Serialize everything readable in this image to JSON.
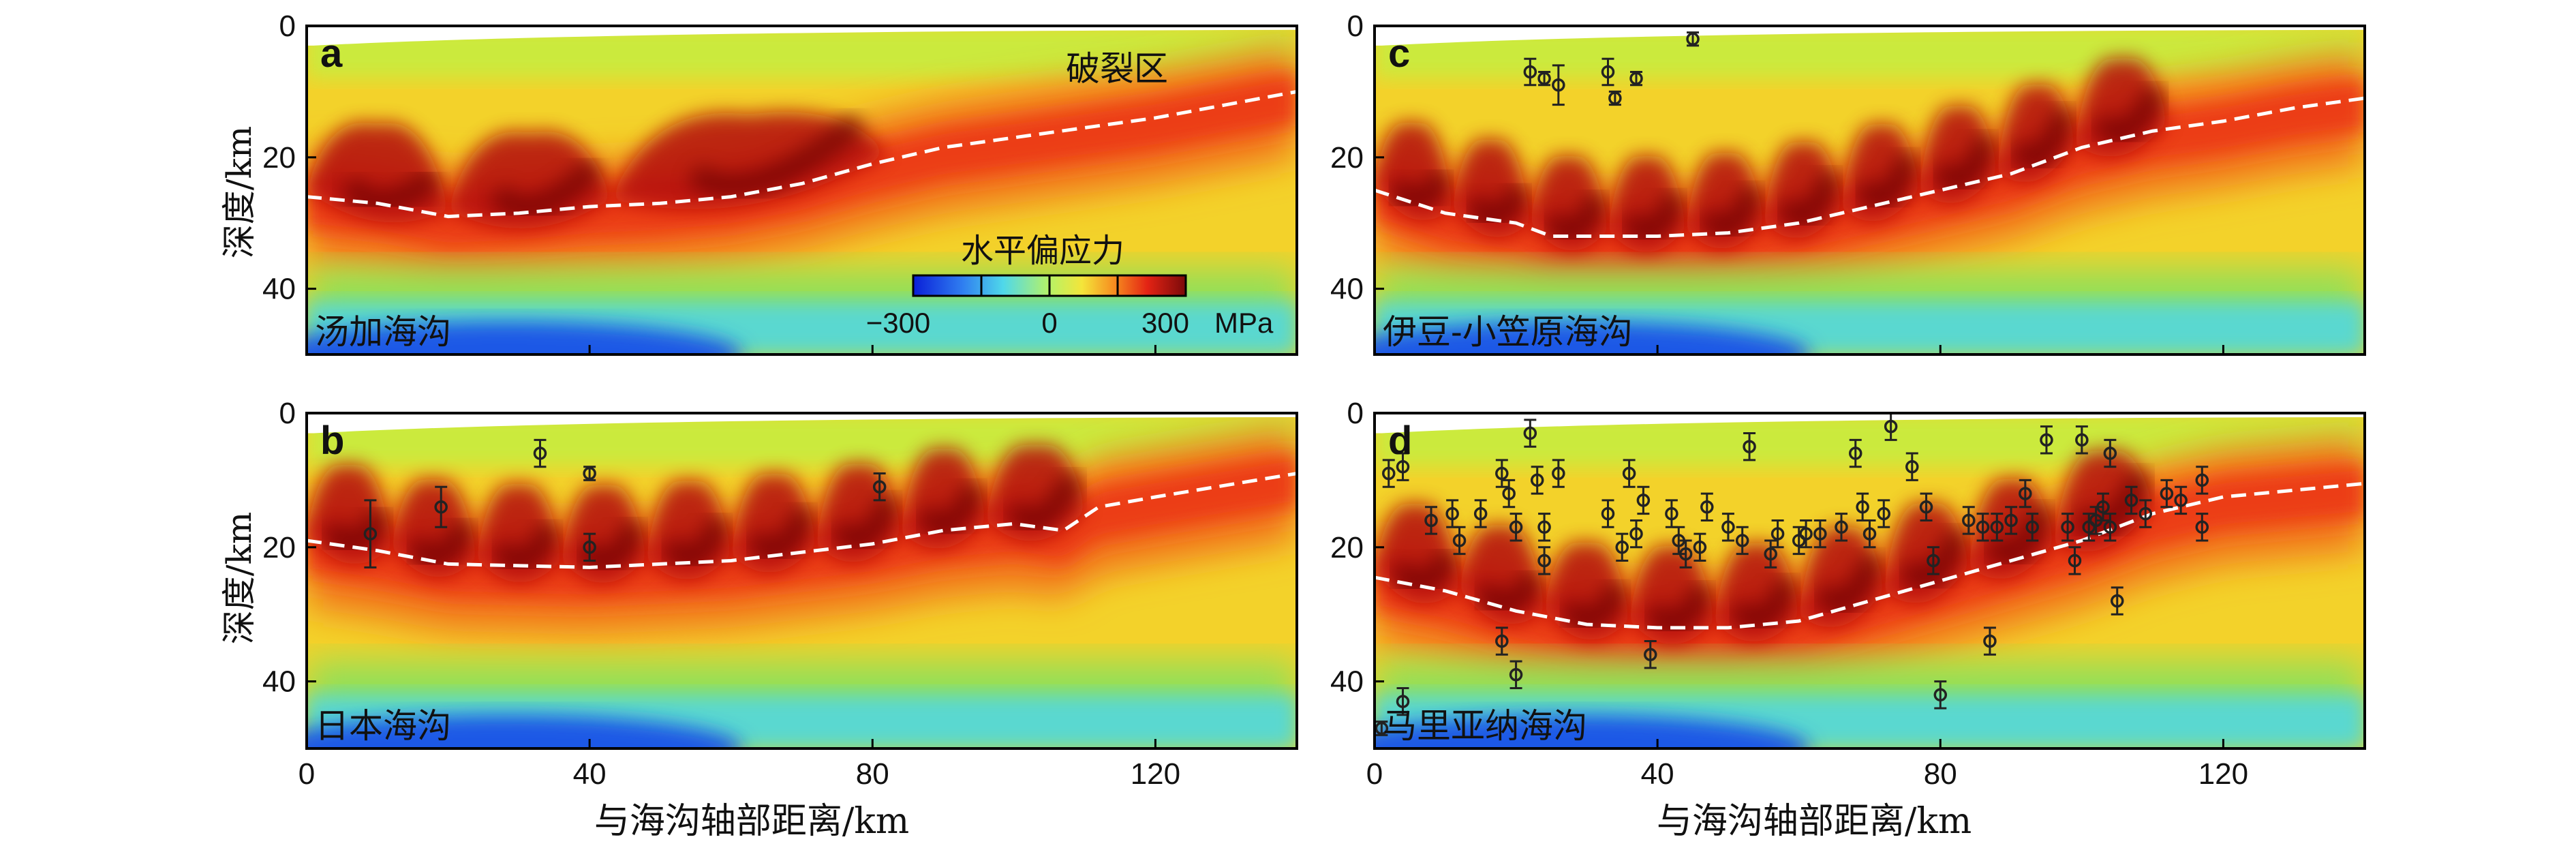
{
  "figure": {
    "xlabel": "与海沟轴部距离/km",
    "ylabel": "深度/km",
    "rupture_label": "破裂区",
    "colorbar": {
      "title": "水平偏应力",
      "ticks": [
        "−300",
        "0",
        "300"
      ],
      "unit": "MPa",
      "range": [
        -300,
        300
      ]
    }
  },
  "chart_data": [
    {
      "type": "heatmap",
      "panel": "a",
      "name": "汤加海沟",
      "xlim": [
        0,
        140
      ],
      "ylim": [
        0,
        50
      ],
      "xticks": [
        "0",
        "40",
        "80",
        "120"
      ],
      "yticks": [
        "0",
        "20",
        "40"
      ],
      "fault_line": [
        [
          0,
          26
        ],
        [
          10,
          27
        ],
        [
          20,
          29
        ],
        [
          30,
          28.5
        ],
        [
          40,
          27.5
        ],
        [
          50,
          27
        ],
        [
          60,
          26
        ],
        [
          70,
          24
        ],
        [
          80,
          21
        ],
        [
          90,
          18.5
        ],
        [
          100,
          17
        ],
        [
          110,
          15.5
        ],
        [
          120,
          14
        ],
        [
          130,
          12
        ],
        [
          140,
          10
        ]
      ],
      "arcs": [
        [
          0,
          20
        ],
        [
          20,
          43
        ],
        [
          43,
          82
        ]
      ],
      "earthquakes": []
    },
    {
      "type": "heatmap",
      "panel": "b",
      "name": "日本海沟",
      "xlim": [
        0,
        140
      ],
      "ylim": [
        0,
        50
      ],
      "xticks": [
        "0",
        "40",
        "80",
        "120"
      ],
      "yticks": [
        "0",
        "20",
        "40"
      ],
      "fault_line": [
        [
          0,
          19
        ],
        [
          10,
          20.5
        ],
        [
          20,
          22.5
        ],
        [
          40,
          23
        ],
        [
          60,
          22
        ],
        [
          80,
          19.5
        ],
        [
          90,
          17.5
        ],
        [
          100,
          16.5
        ],
        [
          107,
          17.5
        ],
        [
          112,
          14
        ],
        [
          120,
          12.5
        ],
        [
          140,
          9
        ]
      ],
      "arcs": [
        [
          0,
          12
        ],
        [
          12,
          24
        ],
        [
          24,
          36
        ],
        [
          36,
          48
        ],
        [
          48,
          60
        ],
        [
          60,
          72
        ],
        [
          72,
          84
        ],
        [
          84,
          96
        ],
        [
          96,
          110
        ]
      ],
      "earthquakes": [
        [
          9,
          18,
          5
        ],
        [
          19,
          14,
          3
        ],
        [
          33,
          6,
          2
        ],
        [
          40,
          9,
          1
        ],
        [
          40,
          20,
          2
        ],
        [
          81,
          11,
          2
        ]
      ]
    },
    {
      "type": "heatmap",
      "panel": "c",
      "name": "伊豆-小笠原海沟",
      "xlim": [
        0,
        140
      ],
      "ylim": [
        0,
        50
      ],
      "xticks": [
        "0",
        "40",
        "80",
        "120"
      ],
      "yticks": [
        "0",
        "20",
        "40"
      ],
      "fault_line": [
        [
          0,
          25
        ],
        [
          10,
          28.5
        ],
        [
          20,
          30
        ],
        [
          25,
          32
        ],
        [
          40,
          32
        ],
        [
          50,
          31.5
        ],
        [
          60,
          30
        ],
        [
          70,
          27.5
        ],
        [
          80,
          25
        ],
        [
          90,
          22.5
        ],
        [
          100,
          18.5
        ],
        [
          110,
          16
        ],
        [
          120,
          14.5
        ],
        [
          130,
          12.5
        ],
        [
          140,
          11
        ]
      ],
      "arcs": [
        [
          0,
          11
        ],
        [
          11,
          22
        ],
        [
          22,
          33
        ],
        [
          33,
          44
        ],
        [
          44,
          55
        ],
        [
          55,
          66
        ],
        [
          66,
          77
        ],
        [
          77,
          88
        ],
        [
          88,
          99
        ],
        [
          99,
          112
        ]
      ],
      "earthquakes": [
        [
          22,
          7,
          2
        ],
        [
          24,
          8,
          1
        ],
        [
          26,
          9,
          3
        ],
        [
          33,
          7,
          2
        ],
        [
          34,
          11,
          1
        ],
        [
          37,
          8,
          1
        ],
        [
          45,
          2,
          1
        ]
      ]
    },
    {
      "type": "heatmap",
      "panel": "d",
      "name": "马里亚纳海沟",
      "xlim": [
        0,
        140
      ],
      "ylim": [
        0,
        50
      ],
      "xticks": [
        "0",
        "40",
        "80",
        "120"
      ],
      "yticks": [
        "0",
        "20",
        "40"
      ],
      "fault_line": [
        [
          0,
          24.5
        ],
        [
          10,
          26.5
        ],
        [
          20,
          29.5
        ],
        [
          30,
          31.5
        ],
        [
          40,
          32
        ],
        [
          50,
          32
        ],
        [
          60,
          31
        ],
        [
          70,
          28
        ],
        [
          80,
          25
        ],
        [
          90,
          22
        ],
        [
          100,
          19
        ],
        [
          110,
          15
        ],
        [
          120,
          12.5
        ],
        [
          130,
          11.5
        ],
        [
          140,
          10.5
        ]
      ],
      "arcs": [
        [
          0,
          12
        ],
        [
          12,
          24
        ],
        [
          24,
          36
        ],
        [
          36,
          48
        ],
        [
          48,
          60
        ],
        [
          60,
          72
        ],
        [
          72,
          84
        ],
        [
          84,
          96
        ],
        [
          96,
          110
        ]
      ],
      "earthquakes": [
        [
          2,
          9,
          2
        ],
        [
          4,
          8,
          2
        ],
        [
          8,
          16,
          2
        ],
        [
          11,
          15,
          2
        ],
        [
          12,
          19,
          2
        ],
        [
          15,
          15,
          2
        ],
        [
          18,
          9,
          2
        ],
        [
          19,
          12,
          2
        ],
        [
          20,
          17,
          2
        ],
        [
          22,
          3,
          2
        ],
        [
          23,
          10,
          2
        ],
        [
          24,
          17,
          2
        ],
        [
          24,
          22,
          2
        ],
        [
          26,
          9,
          2
        ],
        [
          18,
          34,
          2
        ],
        [
          20,
          39,
          2
        ],
        [
          33,
          15,
          2
        ],
        [
          35,
          20,
          2
        ],
        [
          36,
          9,
          2
        ],
        [
          37,
          18,
          2
        ],
        [
          38,
          13,
          2
        ],
        [
          39,
          36,
          2
        ],
        [
          42,
          15,
          2
        ],
        [
          43,
          19,
          2
        ],
        [
          44,
          21,
          2
        ],
        [
          46,
          20,
          2
        ],
        [
          47,
          14,
          2
        ],
        [
          50,
          17,
          2
        ],
        [
          52,
          19,
          2
        ],
        [
          53,
          5,
          2
        ],
        [
          56,
          21,
          2
        ],
        [
          57,
          18,
          2
        ],
        [
          60,
          19,
          2
        ],
        [
          61,
          18,
          2
        ],
        [
          63,
          18,
          2
        ],
        [
          66,
          17,
          2
        ],
        [
          68,
          6,
          2
        ],
        [
          69,
          14,
          2
        ],
        [
          70,
          18,
          2
        ],
        [
          72,
          15,
          2
        ],
        [
          73,
          2,
          2
        ],
        [
          76,
          8,
          2
        ],
        [
          78,
          14,
          2
        ],
        [
          79,
          22,
          2
        ],
        [
          80,
          42,
          2
        ],
        [
          84,
          16,
          2
        ],
        [
          86,
          17,
          2
        ],
        [
          87,
          34,
          2
        ],
        [
          88,
          17,
          2
        ],
        [
          90,
          16,
          2
        ],
        [
          92,
          12,
          2
        ],
        [
          93,
          17,
          2
        ],
        [
          95,
          4,
          2
        ],
        [
          98,
          17,
          2
        ],
        [
          99,
          22,
          2
        ],
        [
          100,
          4,
          2
        ],
        [
          101,
          17,
          2
        ],
        [
          102,
          16,
          2
        ],
        [
          103,
          14,
          2
        ],
        [
          104,
          6,
          2
        ],
        [
          104,
          17,
          2
        ],
        [
          105,
          28,
          2
        ],
        [
          107,
          13,
          2
        ],
        [
          109,
          15,
          2
        ],
        [
          112,
          12,
          2
        ],
        [
          114,
          13,
          2
        ],
        [
          117,
          10,
          2
        ],
        [
          117,
          17,
          2
        ],
        [
          1,
          47,
          1
        ],
        [
          4,
          43,
          2
        ]
      ]
    }
  ]
}
